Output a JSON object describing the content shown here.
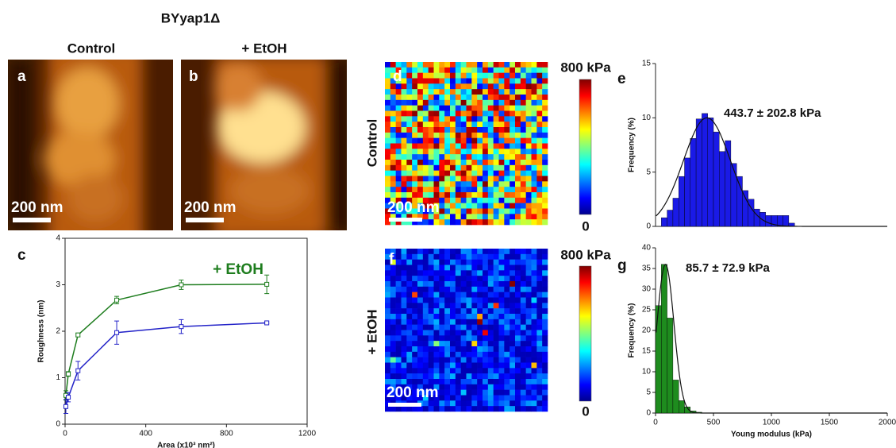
{
  "title": "BYyap1Δ",
  "columns": {
    "control": "Control",
    "etoh": "+ EtOH"
  },
  "rows": {
    "control": "Control",
    "etoh": "+ EtOH"
  },
  "panels": {
    "a": "a",
    "b": "b",
    "c": "c",
    "d": "d",
    "e": "e",
    "f": "f",
    "g": "g"
  },
  "scale_bars": {
    "a": "200 nm",
    "b": "200 nm",
    "d": "200 nm",
    "f": "200 nm"
  },
  "colorbars": {
    "d": {
      "max": "800 kPa",
      "min": "0"
    },
    "f": {
      "max": "800 kPa",
      "min": "0"
    }
  },
  "chart_data": [
    {
      "type": "line",
      "x_label": "Area (x10³ nm²)",
      "y_label": "Roughness (nm)",
      "annotation": "+ EtOH",
      "xlim": [
        0,
        1200
      ],
      "xticks": [
        0,
        400,
        800,
        1200
      ],
      "ylim": [
        0,
        4
      ],
      "yticks": [
        0,
        1,
        2,
        3,
        4
      ],
      "series": [
        {
          "color": "#1e7d1e",
          "x": [
            4,
            16,
            64,
            256,
            576,
            1000
          ],
          "values": [
            0.62,
            1.08,
            1.92,
            2.67,
            3.0,
            3.01
          ],
          "errors": [
            0.1,
            0.05,
            0.04,
            0.08,
            0.1,
            0.2
          ]
        },
        {
          "color": "#2323c8",
          "x": [
            4,
            16,
            64,
            256,
            576,
            1000
          ],
          "values": [
            0.38,
            0.58,
            1.15,
            1.97,
            2.1,
            2.18
          ],
          "errors": [
            0.15,
            0.1,
            0.2,
            0.25,
            0.15,
            0.02
          ]
        }
      ]
    },
    {
      "type": "histogram",
      "y_label": "Frequency (%)",
      "annotation": "443.7 ± 202.8 kPa",
      "color": "#1a1ae6",
      "bins": [
        0,
        50,
        100,
        150,
        200,
        250,
        300,
        350,
        400,
        450,
        500,
        550,
        600,
        650,
        700,
        750,
        800,
        850,
        900,
        950,
        1000,
        1050,
        1100,
        1150,
        1200
      ],
      "values": [
        0,
        0.8,
        1.5,
        2.6,
        4.6,
        6.3,
        8.1,
        9.9,
        10.4,
        10.0,
        8.7,
        6.9,
        7.9,
        5.8,
        4.6,
        3.3,
        2.5,
        1.6,
        1.3,
        1.0,
        1.0,
        1.0,
        1.0,
        0.3
      ],
      "fit": {
        "mean": 443.7,
        "sd": 202.8,
        "peak": 10
      },
      "xlim": [
        0,
        2000
      ],
      "ylim": [
        0,
        15
      ],
      "yticks": [
        0,
        5,
        10,
        15
      ]
    },
    {
      "type": "histogram",
      "x_label": "Young modulus (kPa)",
      "y_label": "Frequency (%)",
      "annotation": "85.7 ± 72.9 kPa",
      "color": "#1e8c1e",
      "bins": [
        0,
        50,
        100,
        150,
        200,
        250,
        300,
        350,
        400
      ],
      "values": [
        26,
        36,
        23,
        8,
        3,
        1.5,
        0.5,
        0.2
      ],
      "fit": {
        "mean": 85.7,
        "sd": 72.9,
        "peak": 36
      },
      "xlim": [
        0,
        2000
      ],
      "xticks": [
        0,
        500,
        1000,
        1500,
        2000
      ],
      "ylim": [
        0,
        40
      ],
      "yticks": [
        0,
        5,
        10,
        15,
        20,
        25,
        30,
        35,
        40
      ]
    }
  ]
}
